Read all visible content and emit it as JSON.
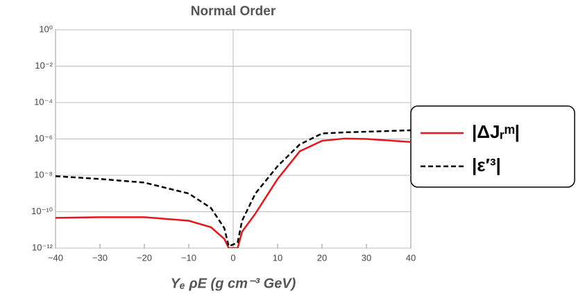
{
  "chart_data": {
    "type": "line",
    "title": "Normal Order",
    "x_label": "Yₑ ρE (g cm⁻³ GeV)",
    "x": [
      -40,
      -30,
      -20,
      -10,
      -5,
      -2,
      -1,
      1,
      2,
      5,
      10,
      15,
      20,
      25,
      30,
      40
    ],
    "series": [
      {
        "name": "|ΔJᵣᵐ|",
        "color": "#e8141b",
        "dash": false,
        "values": [
          4.6e-11,
          5e-11,
          5e-11,
          3.2e-11,
          1.4e-11,
          3.2e-12,
          1e-12,
          1e-12,
          7.9e-12,
          7.9e-11,
          6.3e-09,
          2.1e-07,
          7.9e-07,
          1.05e-06,
          1e-06,
          6.8e-07
        ]
      },
      {
        "name": "|ε′³|",
        "color": "#000000",
        "dash": true,
        "values": [
          9e-09,
          6.3e-09,
          4e-09,
          1e-09,
          1.6e-10,
          1.26e-11,
          1.26e-12,
          2e-12,
          3.2e-11,
          1e-09,
          3.2e-08,
          5e-07,
          2e-06,
          2.3e-06,
          2.5e-06,
          3e-06
        ]
      }
    ],
    "xlim": [
      -40,
      40
    ],
    "xticks": [
      {
        "value": -40,
        "label": "−40"
      },
      {
        "value": -30,
        "label": "−30"
      },
      {
        "value": -20,
        "label": "−20"
      },
      {
        "value": -10,
        "label": "−10"
      },
      0,
      10,
      20,
      30,
      40
    ],
    "ylim": [
      1e-12,
      1
    ],
    "ylog": true,
    "yticks": [
      {
        "value": 1,
        "label": "10⁰"
      },
      {
        "value": 0.01,
        "label": "10⁻²"
      },
      {
        "value": 0.0001,
        "label": "10⁻⁴"
      },
      {
        "value": 1e-06,
        "label": "10⁻⁶"
      },
      {
        "value": 1e-08,
        "label": "10⁻⁸"
      },
      {
        "value": 1e-10,
        "label": "10⁻¹⁰"
      },
      {
        "value": 1e-12,
        "label": "10⁻¹²"
      }
    ],
    "grid": true,
    "xgrid": [
      0
    ],
    "legend": "right"
  }
}
